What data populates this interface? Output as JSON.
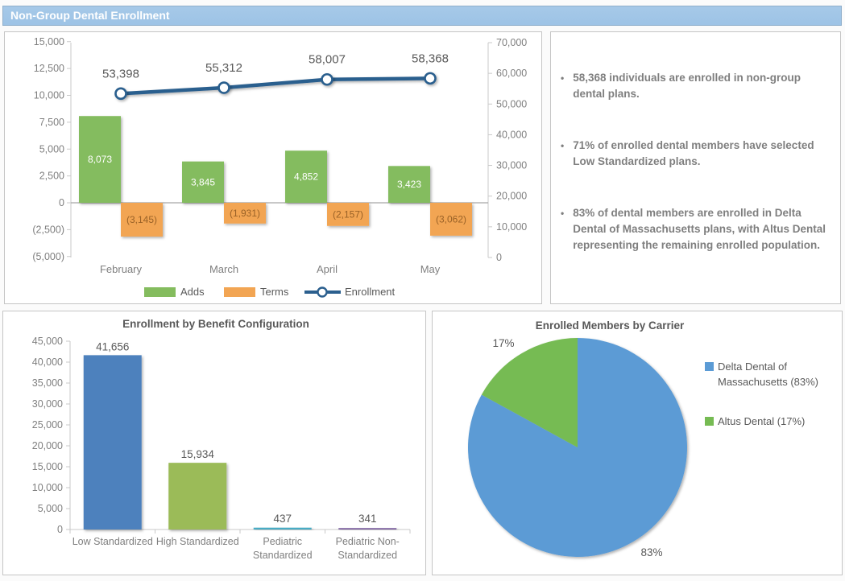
{
  "header": {
    "title": "Non-Group Dental Enrollment"
  },
  "colors": {
    "header_bg": "#9DC3E6",
    "adds_green": "#84BC5E",
    "terms_orange": "#F2A553",
    "terms_label": "#9A6227",
    "enrollment_line": "#2B5F8E",
    "axis_text": "#7F7F7F",
    "label_text": "#595959",
    "axis_line": "#C9C9C9",
    "zero_line": "#A6A6A6",
    "benefit_bar_colors": [
      "#4E81BD",
      "#9BBB59",
      "#4AACC5",
      "#7E63A1"
    ],
    "pie_blue": "#5B9BD5",
    "pie_green": "#76BB53"
  },
  "insights": {
    "bullets": [
      "58,368 individuals are enrolled in non-group dental plans.",
      "71% of enrolled dental members have selected Low Standardized plans.",
      "83% of dental members are enrolled in Delta Dental of Massachusetts plans, with Altus Dental representing the remaining enrolled population."
    ]
  },
  "chart_data": [
    {
      "id": "enrollment-combo",
      "type": "bar",
      "subtype": "combo-bar-line",
      "categories": [
        "February",
        "March",
        "April",
        "May"
      ],
      "series": [
        {
          "name": "Adds",
          "type": "bar",
          "values": [
            8073,
            3845,
            4852,
            3423
          ],
          "labels": [
            "8,073",
            "3,845",
            "4,852",
            "3,423"
          ]
        },
        {
          "name": "Terms",
          "type": "bar",
          "values": [
            -3145,
            -1931,
            -2157,
            -3062
          ],
          "labels": [
            "(3,145)",
            "(1,931)",
            "(2,157)",
            "(3,062)"
          ]
        },
        {
          "name": "Enrollment",
          "type": "line",
          "axis": "right",
          "values": [
            53398,
            55312,
            58007,
            58368
          ],
          "labels": [
            "53,398",
            "55,312",
            "58,007",
            "58,368"
          ]
        }
      ],
      "left_axis": {
        "min": -5000,
        "max": 15000,
        "step": 2500,
        "ticks": [
          {
            "label": "15,000",
            "v": 15000
          },
          {
            "label": "12,500",
            "v": 12500
          },
          {
            "label": "10,000",
            "v": 10000
          },
          {
            "label": "7,500",
            "v": 7500
          },
          {
            "label": "5,000",
            "v": 5000
          },
          {
            "label": "2,500",
            "v": 2500
          },
          {
            "label": "0",
            "v": 0
          },
          {
            "label": "(2,500)",
            "v": -2500
          },
          {
            "label": "(5,000)",
            "v": -5000
          }
        ]
      },
      "right_axis": {
        "min": 0,
        "max": 70000,
        "step": 10000,
        "ticks": [
          {
            "label": "70,000",
            "v": 70000
          },
          {
            "label": "60,000",
            "v": 60000
          },
          {
            "label": "50,000",
            "v": 50000
          },
          {
            "label": "40,000",
            "v": 40000
          },
          {
            "label": "30,000",
            "v": 30000
          },
          {
            "label": "20,000",
            "v": 20000
          },
          {
            "label": "10,000",
            "v": 10000
          },
          {
            "label": "0",
            "v": 0
          }
        ]
      },
      "legend": [
        "Adds",
        "Terms",
        "Enrollment"
      ],
      "grid": false,
      "legend_position": "bottom"
    },
    {
      "id": "benefit-configuration",
      "type": "bar",
      "title": "Enrollment by Benefit Configuration",
      "categories": [
        [
          "Low Standardized"
        ],
        [
          "High Standardized"
        ],
        [
          "Pediatric",
          "Standardized"
        ],
        [
          "Pediatric Non-",
          "Standardized"
        ]
      ],
      "values": [
        41656,
        15934,
        437,
        341
      ],
      "labels": [
        "41,656",
        "15,934",
        "437",
        "341"
      ],
      "ylim": [
        0,
        45000
      ],
      "yticks": [
        {
          "label": "45,000",
          "v": 45000
        },
        {
          "label": "40,000",
          "v": 40000
        },
        {
          "label": "35,000",
          "v": 35000
        },
        {
          "label": "30,000",
          "v": 30000
        },
        {
          "label": "25,000",
          "v": 25000
        },
        {
          "label": "20,000",
          "v": 20000
        },
        {
          "label": "15,000",
          "v": 15000
        },
        {
          "label": "10,000",
          "v": 10000
        },
        {
          "label": "5,000",
          "v": 5000
        },
        {
          "label": "0",
          "v": 0
        }
      ],
      "grid": false
    },
    {
      "id": "carrier-pie",
      "type": "pie",
      "title": "Enrolled Members by Carrier",
      "slices": [
        {
          "label": "Delta Dental of Massachusetts (83%)",
          "value": 83,
          "callout": "83%"
        },
        {
          "label": "Altus Dental (17%)",
          "value": 17,
          "callout": "17%"
        }
      ],
      "legend": [
        {
          "lines": [
            "Delta Dental of",
            "Massachusetts (83%)"
          ]
        },
        {
          "lines": [
            "Altus Dental (17%)"
          ]
        }
      ],
      "legend_position": "right"
    }
  ]
}
